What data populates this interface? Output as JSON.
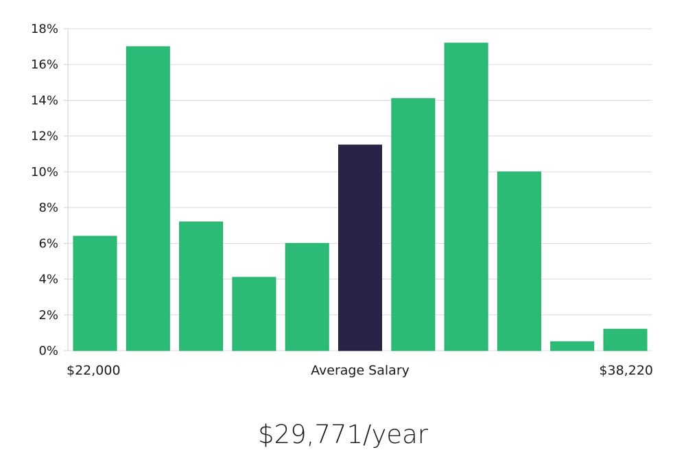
{
  "chart_data": {
    "type": "bar",
    "title": "",
    "ylabel": "",
    "xlabel": "Average Salary",
    "x_min_label": "$22,000",
    "x_max_label": "$38,220",
    "ylim": [
      0,
      18
    ],
    "y_ticks": [
      0,
      2,
      4,
      6,
      8,
      10,
      12,
      14,
      16,
      18
    ],
    "y_tick_labels": [
      "0%",
      "2%",
      "4%",
      "6%",
      "8%",
      "10%",
      "12%",
      "14%",
      "16%",
      "18%"
    ],
    "values": [
      6.4,
      17.0,
      7.2,
      4.1,
      6.0,
      11.5,
      14.1,
      17.2,
      10.0,
      0.5,
      1.2
    ],
    "highlight_index": 5,
    "bar_color": "#2bbb76",
    "highlight_color": "#272447",
    "grid_color": "#d9d9d9"
  },
  "summary": {
    "average_salary": "$29,771/year"
  }
}
